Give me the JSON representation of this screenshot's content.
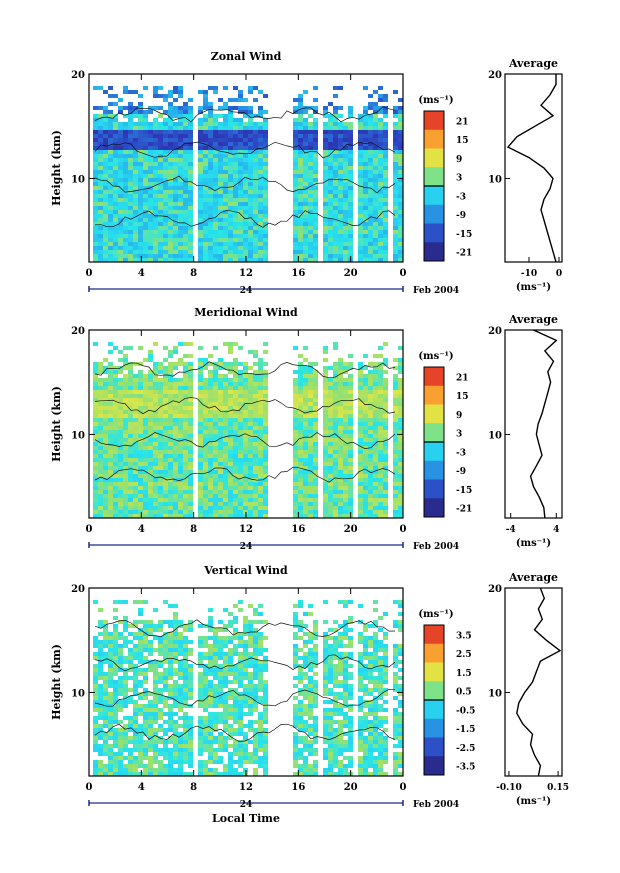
{
  "chart_data": [
    {
      "type": "heatmap",
      "title": "Zonal Wind",
      "ylabel": "Height (km)",
      "xlabel": "",
      "x_ticks": [
        "0",
        "4",
        "8",
        "12",
        "16",
        "20",
        "0"
      ],
      "y_ticks": [
        "10",
        "20"
      ],
      "ylim": [
        2,
        20
      ],
      "date_marker": "24",
      "date_label": "Feb 2004",
      "colorbar": {
        "unit": "(ms⁻¹)",
        "ticks": [
          "21",
          "15",
          "9",
          "3",
          "-3",
          "-9",
          "-15",
          "-21"
        ],
        "range": [
          -24,
          24
        ]
      },
      "average": {
        "title": "Average",
        "xlabel": "(ms⁻¹)",
        "x_ticks": [
          "-10",
          "0"
        ],
        "y_ticks": [
          "10",
          "20"
        ],
        "xlim": [
          -18,
          1
        ],
        "profile": [
          [
            2,
            -1
          ],
          [
            3,
            -2
          ],
          [
            4,
            -3
          ],
          [
            5,
            -4
          ],
          [
            6,
            -5
          ],
          [
            7,
            -6
          ],
          [
            8,
            -5
          ],
          [
            9,
            -3
          ],
          [
            10,
            -2
          ],
          [
            11,
            -5
          ],
          [
            12,
            -10
          ],
          [
            13,
            -17
          ],
          [
            14,
            -14
          ],
          [
            15,
            -8
          ],
          [
            16,
            -2
          ],
          [
            17,
            -6
          ],
          [
            18,
            -3
          ],
          [
            19,
            -1
          ],
          [
            20,
            -1
          ]
        ]
      }
    },
    {
      "type": "heatmap",
      "title": "Meridional Wind",
      "ylabel": "Height (km)",
      "xlabel": "",
      "x_ticks": [
        "0",
        "4",
        "8",
        "12",
        "16",
        "20",
        "0"
      ],
      "y_ticks": [
        "10",
        "20"
      ],
      "ylim": [
        2,
        20
      ],
      "date_marker": "24",
      "date_label": "Feb 2004",
      "colorbar": {
        "unit": "(ms⁻¹)",
        "ticks": [
          "21",
          "15",
          "9",
          "3",
          "-3",
          "-9",
          "-15",
          "-21"
        ],
        "range": [
          -24,
          24
        ]
      },
      "average": {
        "title": "Average",
        "xlabel": "(ms⁻¹)",
        "x_ticks": [
          "-4",
          "4"
        ],
        "y_ticks": [
          "10",
          "20"
        ],
        "xlim": [
          -5,
          5
        ],
        "profile": [
          [
            2,
            2
          ],
          [
            3,
            1.8
          ],
          [
            4,
            1
          ],
          [
            5,
            0
          ],
          [
            6,
            -0.5
          ],
          [
            7,
            0.5
          ],
          [
            8,
            1.5
          ],
          [
            9,
            1
          ],
          [
            10,
            0.5
          ],
          [
            11,
            0.8
          ],
          [
            12,
            1.5
          ],
          [
            13,
            2
          ],
          [
            14,
            2.5
          ],
          [
            15,
            3
          ],
          [
            16,
            2.5
          ],
          [
            17,
            3.5
          ],
          [
            18,
            2
          ],
          [
            19,
            4
          ],
          [
            20,
            0
          ]
        ]
      }
    },
    {
      "type": "heatmap",
      "title": "Vertical Wind",
      "ylabel": "Height (km)",
      "xlabel": "Local Time",
      "x_ticks": [
        "0",
        "4",
        "8",
        "12",
        "16",
        "20",
        "0"
      ],
      "y_ticks": [
        "10",
        "20"
      ],
      "ylim": [
        2,
        20
      ],
      "date_marker": "24",
      "date_label": "Feb 2004",
      "colorbar": {
        "unit": "(ms⁻¹)",
        "ticks": [
          "3.5",
          "2.5",
          "1.5",
          "0.5",
          "-0.5",
          "-1.5",
          "-2.5",
          "-3.5"
        ],
        "range": [
          -4,
          4
        ]
      },
      "average": {
        "title": "Average",
        "xlabel": "(ms⁻¹)",
        "x_ticks": [
          "-0.10",
          "0.15"
        ],
        "y_ticks": [
          "10",
          "20"
        ],
        "xlim": [
          -0.12,
          0.17
        ],
        "profile": [
          [
            2,
            0.05
          ],
          [
            3,
            0.06
          ],
          [
            4,
            0.03
          ],
          [
            5,
            0.01
          ],
          [
            6,
            0.02
          ],
          [
            7,
            -0.03
          ],
          [
            8,
            -0.06
          ],
          [
            9,
            -0.05
          ],
          [
            10,
            -0.02
          ],
          [
            11,
            0.02
          ],
          [
            12,
            0.04
          ],
          [
            13,
            0.06
          ],
          [
            14,
            0.16
          ],
          [
            15,
            0.09
          ],
          [
            16,
            0.03
          ],
          [
            17,
            0.07
          ],
          [
            18,
            0.05
          ],
          [
            19,
            0.08
          ],
          [
            20,
            0.06
          ]
        ]
      }
    }
  ]
}
